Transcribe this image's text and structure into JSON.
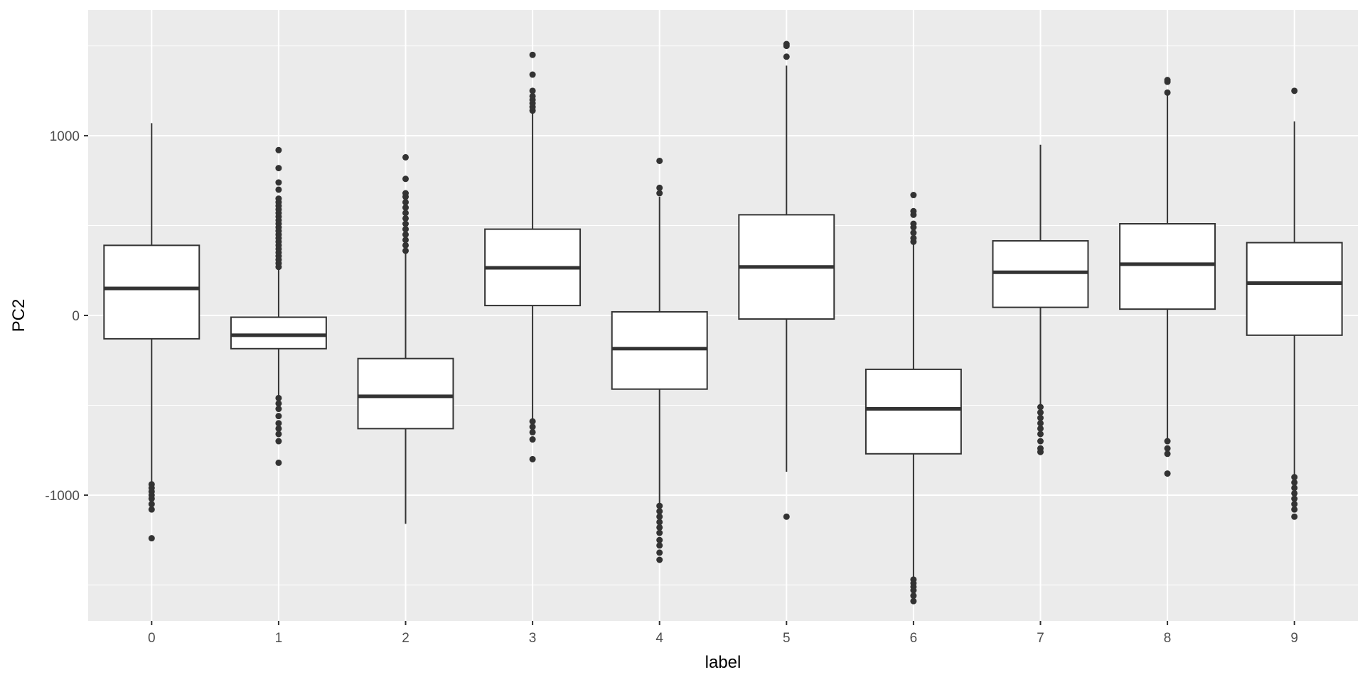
{
  "chart_data": {
    "type": "boxplot",
    "xlabel": "label",
    "ylabel": "PC2",
    "ylim": [
      -1700,
      1700
    ],
    "yticks": [
      -1000,
      0,
      1000
    ],
    "grid": true,
    "colors": {
      "panel": "#ebebeb",
      "grid": "#ffffff",
      "box_fill": "#ffffff",
      "box_line": "#333333",
      "outlier": "#333333"
    },
    "categories": [
      "0",
      "1",
      "2",
      "3",
      "4",
      "5",
      "6",
      "7",
      "8",
      "9"
    ],
    "boxes": [
      {
        "label": "0",
        "q1": -130,
        "median": 150,
        "q3": 390,
        "whisker_low": -940,
        "whisker_high": 1070,
        "outliers": [
          -940,
          -960,
          -980,
          -1000,
          -1020,
          -1050,
          -1080,
          -1240
        ]
      },
      {
        "label": "1",
        "q1": -185,
        "median": -110,
        "q3": -10,
        "whisker_low": -450,
        "whisker_high": 260,
        "outliers": [
          270,
          290,
          310,
          330,
          350,
          370,
          390,
          410,
          430,
          450,
          470,
          490,
          510,
          530,
          550,
          570,
          590,
          610,
          630,
          650,
          700,
          740,
          820,
          920,
          -460,
          -490,
          -520,
          -560,
          -600,
          -630,
          -660,
          -700,
          -820
        ]
      },
      {
        "label": "2",
        "q1": -630,
        "median": -450,
        "q3": -240,
        "whisker_low": -1160,
        "whisker_high": 350,
        "outliers": [
          360,
          390,
          420,
          450,
          480,
          510,
          540,
          570,
          600,
          630,
          660,
          680,
          760,
          880
        ]
      },
      {
        "label": "3",
        "q1": 55,
        "median": 265,
        "q3": 480,
        "whisker_low": -580,
        "whisker_high": 1130,
        "outliers": [
          1140,
          1160,
          1180,
          1200,
          1220,
          1250,
          1340,
          1450,
          -590,
          -620,
          -650,
          -690,
          -800
        ]
      },
      {
        "label": "4",
        "q1": -410,
        "median": -185,
        "q3": 20,
        "whisker_low": -1050,
        "whisker_high": 660,
        "outliers": [
          680,
          710,
          860,
          -1060,
          -1090,
          -1120,
          -1150,
          -1180,
          -1210,
          -1250,
          -1280,
          -1320,
          -1360
        ]
      },
      {
        "label": "5",
        "q1": -20,
        "median": 270,
        "q3": 560,
        "whisker_low": -870,
        "whisker_high": 1390,
        "outliers": [
          1440,
          1500,
          1510,
          -1120
        ]
      },
      {
        "label": "6",
        "q1": -770,
        "median": -520,
        "q3": -300,
        "whisker_low": -1460,
        "whisker_high": 400,
        "outliers": [
          410,
          430,
          460,
          490,
          510,
          560,
          580,
          670,
          -1470,
          -1490,
          -1510,
          -1530,
          -1560,
          -1590
        ]
      },
      {
        "label": "7",
        "q1": 45,
        "median": 240,
        "q3": 415,
        "whisker_low": -500,
        "whisker_high": 950,
        "outliers": [
          -510,
          -540,
          -570,
          -600,
          -630,
          -660,
          -700,
          -740,
          -760
        ]
      },
      {
        "label": "8",
        "q1": 35,
        "median": 285,
        "q3": 510,
        "whisker_low": -690,
        "whisker_high": 1230,
        "outliers": [
          1240,
          1300,
          1310,
          -700,
          -740,
          -770,
          -880
        ]
      },
      {
        "label": "9",
        "q1": -110,
        "median": 180,
        "q3": 405,
        "whisker_low": -890,
        "whisker_high": 1080,
        "outliers": [
          1250,
          -900,
          -930,
          -960,
          -990,
          -1020,
          -1050,
          -1080,
          -1120
        ]
      }
    ]
  }
}
